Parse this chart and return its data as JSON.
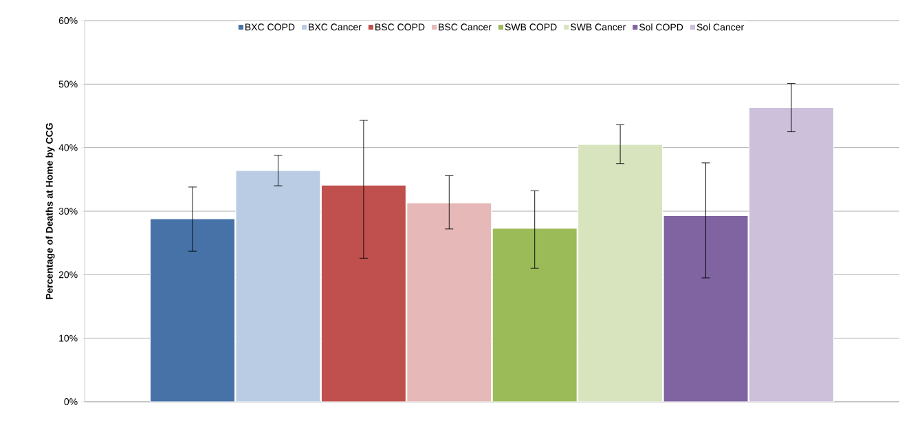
{
  "chart_data": {
    "type": "bar",
    "ylabel": "Percentage of Deaths at Home by CCG",
    "categories": [
      null
    ],
    "ylim": [
      0,
      60
    ],
    "yticks": [
      {
        "value": 0,
        "label": "0%"
      },
      {
        "value": 10,
        "label": "10%"
      },
      {
        "value": 20,
        "label": "20%"
      },
      {
        "value": 30,
        "label": "30%"
      },
      {
        "value": 40,
        "label": "40%"
      },
      {
        "value": 50,
        "label": "50%"
      },
      {
        "value": 60,
        "label": "60%"
      }
    ],
    "grid": "y",
    "legend": "top",
    "series": [
      {
        "name": "BXC COPD",
        "color": "#4672a7",
        "values": [
          28.8
        ],
        "errors": [
          [
            23.7,
            33.8
          ]
        ]
      },
      {
        "name": "BXC Cancer",
        "color": "#b9cce4",
        "values": [
          36.4
        ],
        "errors": [
          [
            34.0,
            38.8
          ]
        ]
      },
      {
        "name": "BSC COPD",
        "color": "#c0504d",
        "values": [
          34.1
        ],
        "errors": [
          [
            22.6,
            44.3
          ]
        ]
      },
      {
        "name": "BSC Cancer",
        "color": "#e6b8b7",
        "values": [
          31.3
        ],
        "errors": [
          [
            27.2,
            35.6
          ]
        ]
      },
      {
        "name": "SWB COPD",
        "color": "#9bbb59",
        "values": [
          27.3
        ],
        "errors": [
          [
            21.0,
            33.2
          ]
        ]
      },
      {
        "name": "SWB Cancer",
        "color": "#d7e4bd",
        "values": [
          40.5
        ],
        "errors": [
          [
            37.5,
            43.6
          ]
        ]
      },
      {
        "name": "Sol COPD",
        "color": "#8064a2",
        "values": [
          29.3
        ],
        "errors": [
          [
            19.5,
            37.6
          ]
        ]
      },
      {
        "name": "Sol Cancer",
        "color": "#ccc0da",
        "values": [
          46.3
        ],
        "errors": [
          [
            42.5,
            50.1
          ]
        ]
      }
    ]
  }
}
